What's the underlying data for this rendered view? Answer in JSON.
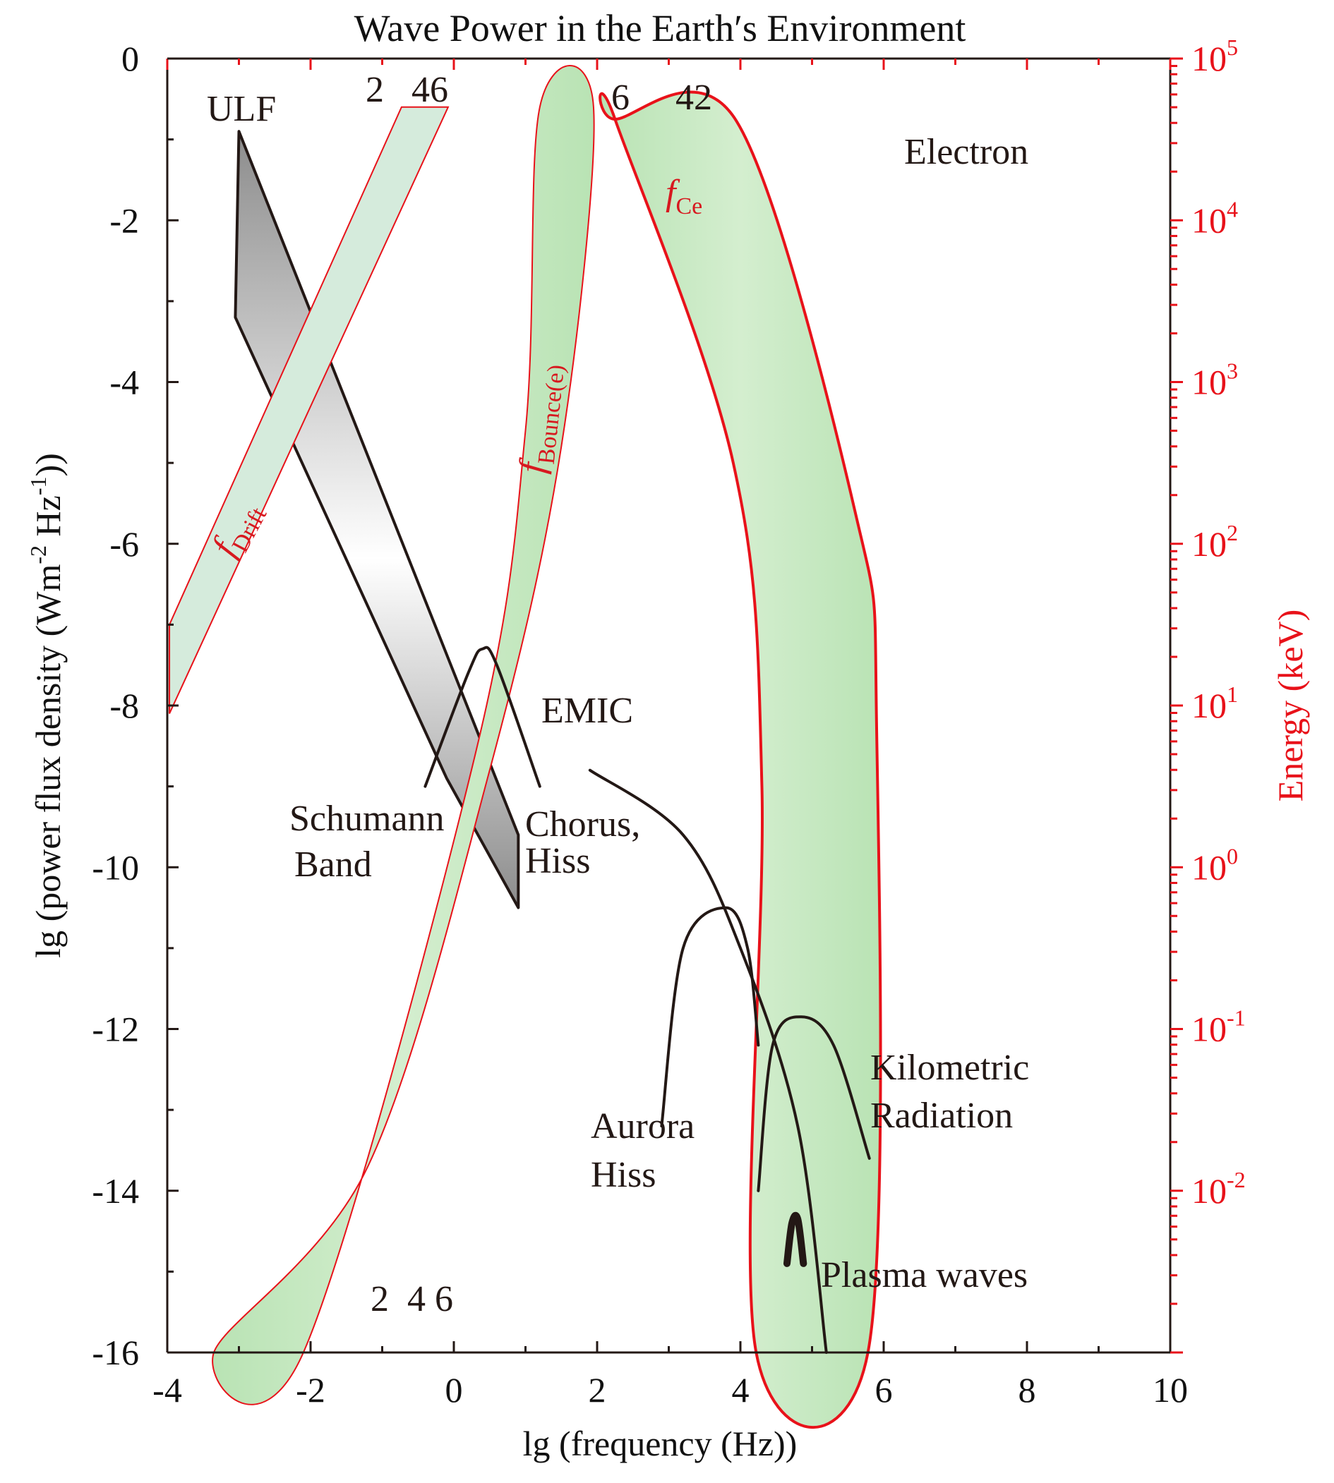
{
  "chart_data": {
    "type": "area",
    "title": "Wave Power in the Earth′s Environment",
    "xlabel": "lg (frequency (Hz))",
    "ylabel": "lg (power flux density (Wm-2Hz-1))",
    "y2label": "Energy (keV)",
    "xlim": [
      -4,
      10
    ],
    "ylim": [
      -16,
      0
    ],
    "y2lim_log10": [
      -3,
      5
    ],
    "x_ticks": [
      "-4",
      "-2",
      "0",
      "2",
      "4",
      "6",
      "8",
      "10"
    ],
    "y_ticks": [
      "0",
      "-2",
      "-4",
      "-6",
      "-8",
      "-10",
      "-12",
      "-14",
      "-16"
    ],
    "y2_ticks": [
      {
        "base": "10",
        "exp": "5",
        "log": 5
      },
      {
        "base": "10",
        "exp": "4",
        "log": 4
      },
      {
        "base": "10",
        "exp": "3",
        "log": 3
      },
      {
        "base": "10",
        "exp": "2",
        "log": 2
      },
      {
        "base": "10",
        "exp": "1",
        "log": 1
      },
      {
        "base": "10",
        "exp": "0",
        "log": 0
      },
      {
        "base": "10",
        "exp": "-1",
        "log": -1
      },
      {
        "base": "10",
        "exp": "-2",
        "log": -2
      }
    ],
    "series": [
      {
        "name": "ULF",
        "kind": "band",
        "points": [
          [
            -3.0,
            -0.9
          ],
          [
            -3.05,
            -3.2
          ],
          [
            -0.1,
            -8.9
          ],
          [
            0.9,
            -10.5
          ],
          [
            0.9,
            -9.6
          ]
        ]
      },
      {
        "name": "f_Drift",
        "kind": "band",
        "points": [
          [
            -3.97,
            -8.1
          ],
          [
            -3.97,
            -7.0
          ],
          [
            -0.73,
            -0.6
          ],
          [
            -0.08,
            -0.6
          ]
        ]
      },
      {
        "name": "f_Bounce(e)",
        "kind": "band",
        "points": [
          [
            -3.35,
            -16
          ],
          [
            -1.2,
            -13.7
          ],
          [
            0.5,
            -8.8
          ],
          [
            1.5,
            -4.8
          ],
          [
            1.95,
            -0.6
          ],
          [
            1.2,
            -0.6
          ],
          [
            1.0,
            -4.6
          ],
          [
            0.3,
            -8.6
          ],
          [
            -2.1,
            -16
          ]
        ]
      },
      {
        "name": "f_Ce",
        "kind": "band",
        "points": [
          [
            2.25,
            -0.75
          ],
          [
            3.95,
            -0.78
          ],
          [
            5.6,
            -5.6
          ],
          [
            5.9,
            -8.2
          ],
          [
            5.78,
            -16
          ],
          [
            4.22,
            -16
          ],
          [
            4.3,
            -9.0
          ],
          [
            3.9,
            -5.0
          ],
          [
            2.25,
            -0.75
          ]
        ]
      },
      {
        "name": "EMIC",
        "kind": "curve",
        "points": [
          [
            -0.4,
            -9.0
          ],
          [
            0.2,
            -7.6
          ],
          [
            0.4,
            -7.3
          ],
          [
            0.6,
            -7.5
          ],
          [
            1.2,
            -9.0
          ]
        ]
      },
      {
        "name": "Chorus, Hiss",
        "kind": "curve",
        "points": [
          [
            1.9,
            -8.8
          ],
          [
            3.2,
            -9.6
          ],
          [
            4.0,
            -11.0
          ],
          [
            4.8,
            -13.2
          ],
          [
            5.2,
            -16.0
          ]
        ]
      },
      {
        "name": "Aurora Hiss",
        "kind": "curve",
        "points": [
          [
            2.9,
            -13.2
          ],
          [
            3.2,
            -11.0
          ],
          [
            3.8,
            -10.5
          ],
          [
            4.1,
            -11.0
          ],
          [
            4.25,
            -12.2
          ]
        ]
      },
      {
        "name": "Kilometric Radiation",
        "kind": "curve",
        "points": [
          [
            4.25,
            -14.0
          ],
          [
            4.45,
            -12.2
          ],
          [
            4.85,
            -11.85
          ],
          [
            5.3,
            -12.2
          ],
          [
            5.8,
            -13.6
          ]
        ]
      },
      {
        "name": "Plasma waves",
        "kind": "curve",
        "points": [
          [
            4.65,
            -14.9
          ],
          [
            4.72,
            -14.4
          ],
          [
            4.8,
            -14.35
          ],
          [
            4.88,
            -14.9
          ]
        ]
      }
    ],
    "annotations": {
      "ulf": "ULF",
      "electron": "Electron",
      "emic": "EMIC",
      "schumann_1": "Schumann",
      "schumann_2": "Band",
      "chorus_1": "Chorus,",
      "chorus_2": "Hiss",
      "aurora_1": "Aurora",
      "aurora_2": "Hiss",
      "kilometric_1": "Kilometric",
      "kilometric_2": "Radiation",
      "plasma": "Plasma waves",
      "drift_f": "f",
      "drift_sub": "Drift",
      "bounce_f": "f",
      "bounce_sub": "Bounce(e)",
      "ce_f": "f",
      "ce_sub": "Ce",
      "top_nums_left": "2   46",
      "top_nums_right": "6     42",
      "bottom_nums": "2  4 6"
    },
    "grid": false,
    "legend": "none",
    "colors": {
      "axis": "#231815",
      "energy_axis": "#e8121a",
      "band_fill": "#b9e3b4",
      "drift_fill": "#d5ebdc",
      "band_edge": "#e8121a",
      "ulf_dark": "#8c8c8c",
      "ulf_light": "#ffffff"
    }
  }
}
